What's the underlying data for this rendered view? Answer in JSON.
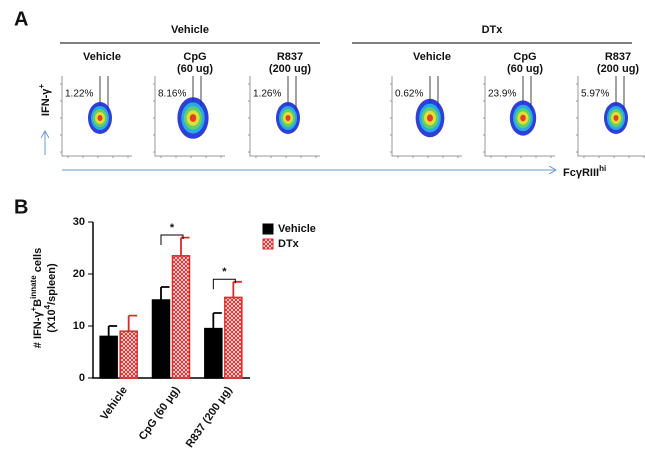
{
  "panel_a": {
    "letter": "A",
    "groups": [
      "Vehicle",
      "DTx"
    ],
    "plots": [
      {
        "title": [
          "Vehicle"
        ],
        "percent": "1.22%"
      },
      {
        "title": [
          "CpG",
          "(60 ug)"
        ],
        "percent": "8.16%"
      },
      {
        "title": [
          "R837",
          "(200 ug)"
        ],
        "percent": "1.26%"
      },
      {
        "title": [
          "Vehicle"
        ],
        "percent": "0.62%"
      },
      {
        "title": [
          "CpG",
          "(60 ug)"
        ],
        "percent": "23.9%"
      },
      {
        "title": [
          "R837",
          "(200 ug)"
        ],
        "percent": "5.97%"
      }
    ],
    "y_axis_label": [
      "IFN-γ",
      "+"
    ],
    "x_axis_label": [
      "FcγRIII",
      "hi"
    ]
  },
  "chart_data": {
    "type": "bar",
    "panel_letter": "B",
    "y_label": [
      [
        "# IFN-γ",
        "+",
        "B",
        "innate",
        " cells"
      ],
      [
        "(X10",
        "4",
        "/spleen)"
      ]
    ],
    "categories": [
      "Vehicle",
      "CpG (60 μg)",
      "R837 (200 μg)"
    ],
    "series": [
      {
        "name": "Vehicle",
        "color": "#000000",
        "values": [
          8,
          15,
          9.5
        ],
        "errors": [
          2,
          2.5,
          3
        ]
      },
      {
        "name": "DTx",
        "color": "#e02828",
        "values": [
          9,
          23.5,
          15.5
        ],
        "errors": [
          3,
          3.5,
          3
        ]
      }
    ],
    "annotations": [
      "*",
      "*"
    ],
    "ylim": [
      0,
      30
    ],
    "yticks": [
      0,
      10,
      20,
      30
    ],
    "legend": "upper right"
  }
}
